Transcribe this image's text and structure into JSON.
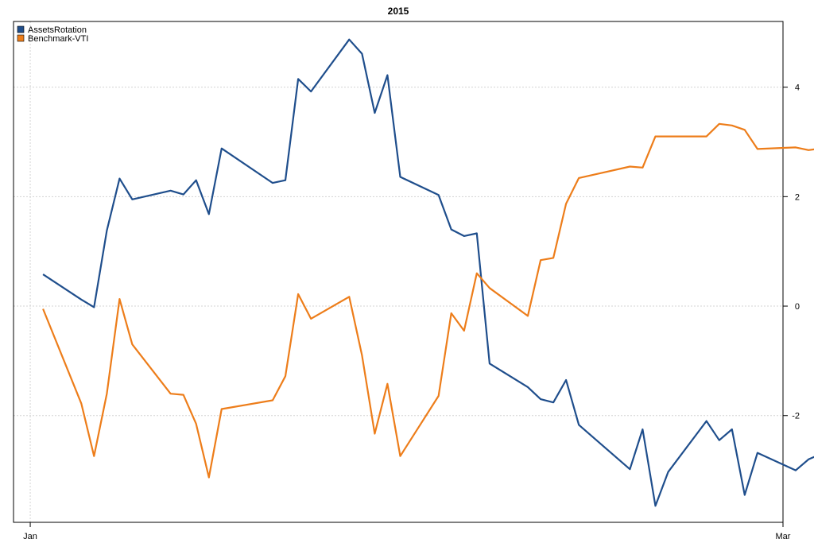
{
  "chart_data": {
    "type": "line",
    "title": "2015",
    "xlabel": "",
    "ylabel": "",
    "x_ticks": [
      "Jan",
      "Mar"
    ],
    "y_ticks": [
      -2,
      0,
      2,
      4
    ],
    "ylim": [
      -3.95,
      5.2
    ],
    "grid": true,
    "y_axis_side": "right",
    "legend": {
      "placement": "top-left"
    },
    "x": [
      "2015-01-02",
      "2015-01-05",
      "2015-01-06",
      "2015-01-07",
      "2015-01-08",
      "2015-01-09",
      "2015-01-12",
      "2015-01-13",
      "2015-01-14",
      "2015-01-15",
      "2015-01-16",
      "2015-01-20",
      "2015-01-21",
      "2015-01-22",
      "2015-01-23",
      "2015-01-26",
      "2015-01-27",
      "2015-01-28",
      "2015-01-29",
      "2015-01-30",
      "2015-02-02",
      "2015-02-03",
      "2015-02-04",
      "2015-02-05",
      "2015-02-06",
      "2015-02-09",
      "2015-02-10",
      "2015-02-11",
      "2015-02-12",
      "2015-02-13",
      "2015-02-17",
      "2015-02-18",
      "2015-02-19",
      "2015-02-20",
      "2015-02-23",
      "2015-02-24",
      "2015-02-25",
      "2015-02-26",
      "2015-02-27",
      "2015-03-02",
      "2015-03-03",
      "2015-03-04",
      "2015-03-05",
      "2015-03-06"
    ],
    "series": [
      {
        "name": "AssetsRotation",
        "color": "#1f4e8c",
        "values": [
          0.58,
          0.12,
          -0.02,
          1.38,
          2.33,
          1.95,
          2.11,
          2.04,
          2.3,
          1.68,
          2.88,
          2.25,
          2.3,
          4.15,
          3.92,
          4.87,
          4.61,
          3.53,
          4.22,
          2.36,
          2.03,
          1.4,
          1.28,
          1.33,
          -1.05,
          -1.48,
          -1.7,
          -1.76,
          -1.35,
          -2.17,
          -2.98,
          -2.25,
          -3.65,
          -3.03,
          -2.1,
          -2.45,
          -2.25,
          -3.45,
          -2.68,
          -3.0,
          -2.8,
          -2.7,
          -2.75,
          -2.68
        ]
      },
      {
        "name": "Benchmark-VTI",
        "color": "#ed7d1a",
        "values": [
          -0.05,
          -1.78,
          -2.74,
          -1.6,
          0.13,
          -0.7,
          -1.6,
          -1.62,
          -2.15,
          -3.13,
          -1.88,
          -1.72,
          -1.28,
          0.22,
          -0.23,
          0.17,
          -0.9,
          -2.33,
          -1.42,
          -2.74,
          -1.64,
          -0.13,
          -0.45,
          0.6,
          0.33,
          -0.18,
          0.84,
          0.88,
          1.87,
          2.34,
          2.55,
          2.53,
          3.1,
          3.1,
          3.1,
          3.33,
          3.3,
          3.22,
          2.87,
          2.9,
          2.85,
          2.88,
          2.86,
          2.87
        ]
      }
    ]
  }
}
